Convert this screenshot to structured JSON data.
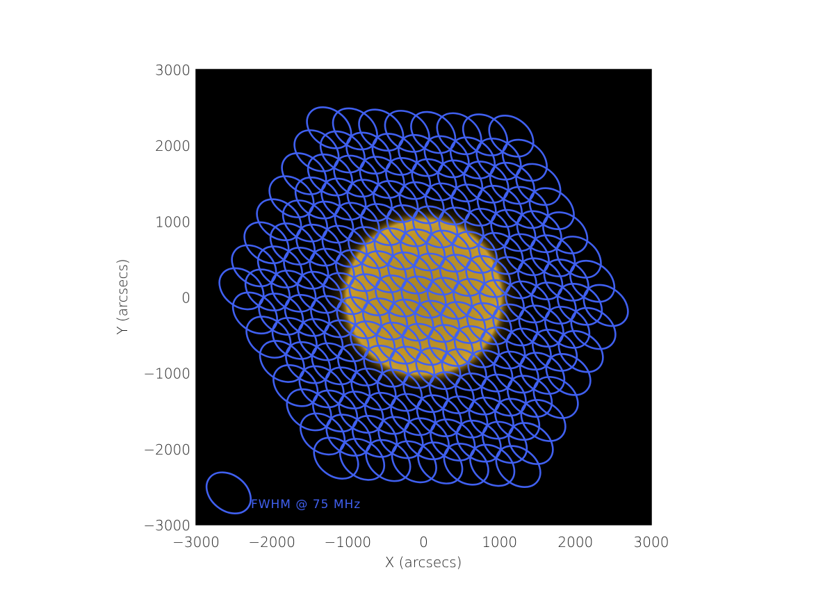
{
  "chart_data": {
    "type": "scatter",
    "xlabel": "X (arcsecs)",
    "ylabel": "Y (arcsecs)",
    "xlim": [
      -3000,
      3000
    ],
    "ylim": [
      -3000,
      3000
    ],
    "x_ticks": [
      -3000,
      -2000,
      -1000,
      0,
      1000,
      2000,
      3000
    ],
    "y_ticks": [
      -3000,
      -2000,
      -1000,
      0,
      1000,
      2000,
      3000
    ],
    "x_tick_labels": [
      "−3000",
      "−2000",
      "−1000",
      "0",
      "1000",
      "2000",
      "3000"
    ],
    "y_tick_labels": [
      "−3000",
      "−2000",
      "−1000",
      "0",
      "1000",
      "2000",
      "3000"
    ],
    "background_image": "sun-euv-disk",
    "sun": {
      "center": [
        0,
        0
      ],
      "radius": 1150
    },
    "beam_color": "#4060f0",
    "sun_color": "#d9a428",
    "plot_background": "#000000",
    "beam_pattern": {
      "shape": "hexagonal-tiling",
      "rings": 7,
      "beam_semi_major": 320,
      "beam_semi_minor": 235,
      "beam_angle_deg": 38,
      "lattice_vector_a": [
        120,
        -345
      ],
      "lattice_vector_b": [
        -215,
        -270
      ],
      "rotation_deg": 10
    },
    "annotation": {
      "text": "FWHM @ 75 MHz",
      "beam_center": [
        -2570,
        -2580
      ]
    }
  }
}
